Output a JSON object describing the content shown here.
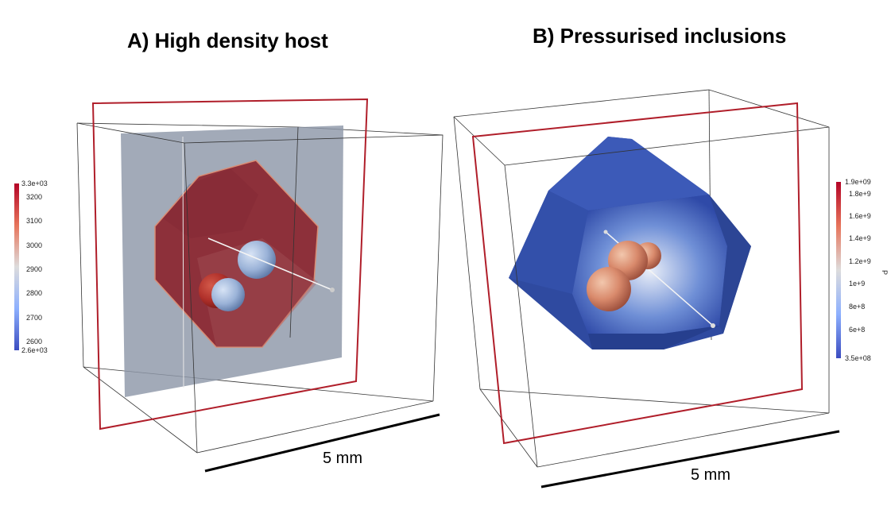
{
  "panel_a": {
    "title": "A) High density host",
    "scale_label": "5 mm",
    "colorbar": {
      "max_label": "3.3e+03",
      "min_label": "2.6e+03",
      "ticks": [
        "3200",
        "3100",
        "3000",
        "2900",
        "2800",
        "2700",
        "2600"
      ],
      "colors": [
        "#b2182b",
        "#d6604d",
        "#f4a582",
        "#dddddd",
        "#92c5de",
        "#4393c3",
        "#3b4cc0"
      ]
    }
  },
  "panel_b": {
    "title": "B) Pressurised inclusions",
    "scale_label": "5 mm",
    "colorbar": {
      "max_label": "1.9e+09",
      "min_label": "3.5e+08",
      "ticks": [
        "1.8e+9",
        "1.6e+9",
        "1.4e+9",
        "1.2e+9",
        "1e+9",
        "8e+8",
        "6e+8"
      ],
      "axis_label": "P",
      "colors": [
        "#b2182b",
        "#d6604d",
        "#f4a582",
        "#dddddd",
        "#92c5de",
        "#4393c3",
        "#3b4cc0"
      ]
    }
  }
}
